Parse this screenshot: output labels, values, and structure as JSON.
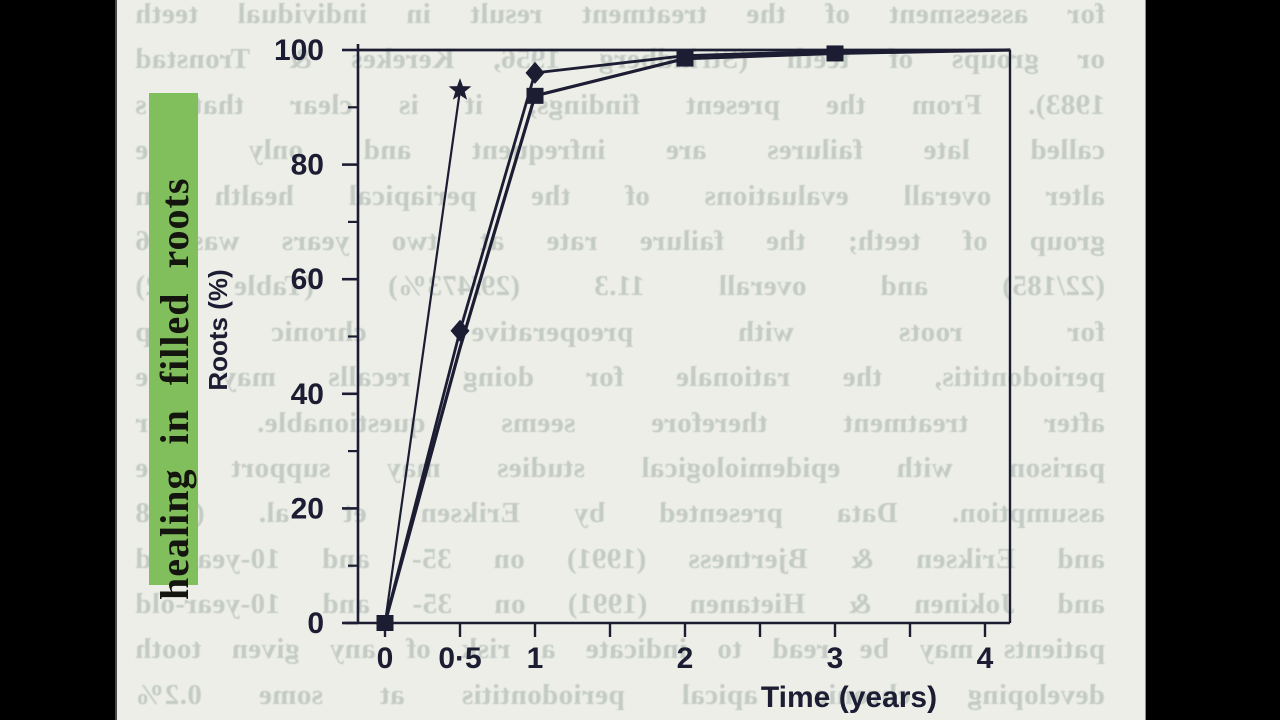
{
  "scan": {
    "page_color": "#edeee8",
    "letterbox_color": "#000000",
    "ghost_text_color": "#c3cbc4",
    "ghost_lines": [
      "for assessment of the treatment result in individual teeth",
      "or groups of teeth (Strindberg 1956, Kerekes & Tronstad",
      "1983). From the present findings, it is clear that s",
      "called late failures are infrequent and only gibe",
      "alter overall evaluations of the periapical health in",
      "group of teeth; the failure rate at two years was 6",
      "(22/185) and overall 11.3 (29/473%) (Table 2)",
      "for roots with preoperative chronic ap",
      "periodontitis, the rationale for doing recalls may we",
      "after treatment therefore seems questionable. For",
      "parison with epidemiological studies may support the",
      "assumption. Data presented by Eriksen et al. (1988",
      "and Eriksen & Bjertness (1991) on 35- and 10-year-old",
      "and Jokinen & Hietanen (1991) on 35- and 10-year-old",
      "patients may be read to indicate a risk of any given tooth",
      "developing chronic apical periodontitis at some 0.2%"
    ]
  },
  "heading": {
    "text": "healing in filled roots",
    "highlight_color": "#80bf5c",
    "text_color": "#15150f"
  },
  "chart_data": {
    "type": "line",
    "title": "",
    "xlabel": "Time (years)",
    "ylabel": "Roots (%)",
    "xlim": [
      0,
      4.2
    ],
    "ylim": [
      0,
      100
    ],
    "grid": false,
    "legend": "none",
    "border": {
      "top": true,
      "right": true,
      "bottom": true,
      "left": true
    },
    "ink_color": "#1c1c33",
    "x_ticks": [
      0,
      0.5,
      1,
      1.5,
      2,
      2.5,
      3,
      3.5,
      4
    ],
    "x_tick_labels": [
      {
        "value": 0,
        "label": "0"
      },
      {
        "value": 0.5,
        "label": "0·5"
      },
      {
        "value": 1,
        "label": "1"
      },
      {
        "value": 2,
        "label": "2"
      },
      {
        "value": 3,
        "label": "3"
      },
      {
        "value": 4,
        "label": "4"
      }
    ],
    "y_major_ticks": [
      0,
      20,
      40,
      60,
      80,
      100
    ],
    "y_minor_ticks": [
      10,
      30,
      50,
      70,
      90
    ],
    "series": [
      {
        "name": "star series",
        "marker": "star",
        "x": [
          0,
          0.5
        ],
        "y": [
          0,
          93
        ],
        "markers_at": [
          0.5
        ]
      },
      {
        "name": "diamond series",
        "marker": "diamond",
        "x": [
          0,
          0.5,
          1,
          2,
          3,
          4.17
        ],
        "y": [
          0,
          51,
          96,
          99,
          99.8,
          100
        ],
        "markers_at": [
          0.5,
          1
        ]
      },
      {
        "name": "square series",
        "marker": "square",
        "x": [
          0,
          0.5,
          1,
          2,
          3,
          4.17
        ],
        "y": [
          0,
          48,
          92,
          98.5,
          99.4,
          100
        ],
        "markers_at": [
          0,
          1,
          2,
          3
        ]
      }
    ]
  }
}
